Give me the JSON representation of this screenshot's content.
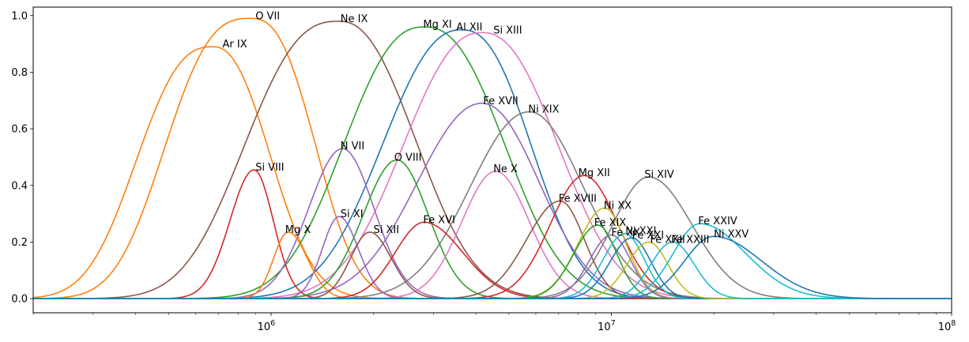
{
  "chart_data": {
    "type": "line",
    "title": "",
    "xlabel": "",
    "ylabel": "",
    "xscale": "log",
    "xlim": [
      200000,
      100000000
    ],
    "ylim": [
      -0.05,
      1.03
    ],
    "grid": false,
    "legend": "none",
    "x_ticks": [
      {
        "value": 1000000,
        "mantissa": "10",
        "exp": "6"
      },
      {
        "value": 10000000,
        "mantissa": "10",
        "exp": "7"
      },
      {
        "value": 100000000,
        "mantissa": "10",
        "exp": "8"
      }
    ],
    "y_ticks": [
      "0.0",
      "0.2",
      "0.4",
      "0.6",
      "0.8",
      "1.0"
    ],
    "y_tick_values": [
      0.0,
      0.2,
      0.4,
      0.6,
      0.8,
      1.0
    ],
    "series": [
      {
        "name": "O VII",
        "color": "#ff7f0e",
        "peak_logT": 5.94,
        "peak": 0.99,
        "w_lo": 0.3,
        "w_hi": 0.232,
        "p_lo": 2.8,
        "p_hi": 2.6,
        "label_x": 900000,
        "label_y": 0.99
      },
      {
        "name": "Ar IX",
        "color": "#ff7f0e",
        "peak_logT": 5.83,
        "peak": 0.89,
        "w_lo": 0.275,
        "w_hi": 0.215,
        "p_lo": 2.6,
        "p_hi": 2.3,
        "label_x": 720000,
        "label_y": 0.89
      },
      {
        "name": "Ne IX",
        "color": "#8c564b",
        "peak_logT": 6.2,
        "peak": 0.98,
        "w_lo": 0.34,
        "w_hi": 0.29,
        "p_lo": 2.6,
        "p_hi": 2.3,
        "label_x": 1600000,
        "label_y": 0.98
      },
      {
        "name": "Mg XI",
        "color": "#2ca02c",
        "peak_logT": 6.45,
        "peak": 0.96,
        "w_lo": 0.3,
        "w_hi": 0.3,
        "p_lo": 2.4,
        "p_hi": 2.4,
        "label_x": 2800000,
        "label_y": 0.96
      },
      {
        "name": "Al XII",
        "color": "#1f77b4",
        "peak_logT": 6.56,
        "peak": 0.95,
        "w_lo": 0.3,
        "w_hi": 0.26,
        "p_lo": 2.3,
        "p_hi": 2.4,
        "label_x": 3500000,
        "label_y": 0.95
      },
      {
        "name": "Si XIII",
        "color": "#e377c2",
        "peak_logT": 6.62,
        "peak": 0.94,
        "w_lo": 0.3,
        "w_hi": 0.29,
        "p_lo": 2.3,
        "p_hi": 2.3,
        "label_x": 4500000,
        "label_y": 0.94
      },
      {
        "name": "Fe XVII",
        "color": "#9467bd",
        "peak_logT": 6.62,
        "peak": 0.69,
        "w_lo": 0.26,
        "w_hi": 0.23,
        "p_lo": 2.1,
        "p_hi": 2.1,
        "label_x": 4200000,
        "label_y": 0.69
      },
      {
        "name": "Ni XIX",
        "color": "#7f7f7f",
        "peak_logT": 6.76,
        "peak": 0.66,
        "w_lo": 0.24,
        "w_hi": 0.22,
        "p_lo": 2.1,
        "p_hi": 2.0,
        "label_x": 5700000,
        "label_y": 0.66
      },
      {
        "name": "Si VIII",
        "color": "#d62728",
        "peak_logT": 5.95,
        "peak": 0.455,
        "w_lo": 0.1,
        "w_hi": 0.08,
        "p_lo": 2.0,
        "p_hi": 2.0,
        "label_x": 900000,
        "label_y": 0.455
      },
      {
        "name": "N VII",
        "color": "#9467bd",
        "peak_logT": 6.21,
        "peak": 0.53,
        "w_lo": 0.14,
        "w_hi": 0.13,
        "p_lo": 2.0,
        "p_hi": 2.0,
        "label_x": 1600000,
        "label_y": 0.53
      },
      {
        "name": "O VIII",
        "color": "#2ca02c",
        "peak_logT": 6.37,
        "peak": 0.49,
        "w_lo": 0.14,
        "w_hi": 0.13,
        "p_lo": 2.0,
        "p_hi": 2.0,
        "label_x": 2300000,
        "label_y": 0.49
      },
      {
        "name": "Ne X",
        "color": "#e377c2",
        "peak_logT": 6.66,
        "peak": 0.45,
        "w_lo": 0.14,
        "w_hi": 0.14,
        "p_lo": 2.0,
        "p_hi": 2.0,
        "label_x": 4500000,
        "label_y": 0.45
      },
      {
        "name": "Mg XII",
        "color": "#d62728",
        "peak_logT": 6.92,
        "peak": 0.435,
        "w_lo": 0.14,
        "w_hi": 0.14,
        "p_lo": 2.0,
        "p_hi": 2.0,
        "label_x": 8000000,
        "label_y": 0.435
      },
      {
        "name": "Si XIV",
        "color": "#7f7f7f",
        "peak_logT": 7.11,
        "peak": 0.43,
        "w_lo": 0.15,
        "w_hi": 0.18,
        "p_lo": 2.0,
        "p_hi": 2.0,
        "label_x": 12500000,
        "label_y": 0.43
      },
      {
        "name": "Si XI",
        "color": "#9467bd",
        "peak_logT": 6.2,
        "peak": 0.29,
        "w_lo": 0.07,
        "w_hi": 0.08,
        "p_lo": 2.0,
        "p_hi": 2.0,
        "label_x": 1600000,
        "label_y": 0.29
      },
      {
        "name": "Mg X",
        "color": "#ff7f0e",
        "peak_logT": 6.05,
        "peak": 0.235,
        "w_lo": 0.06,
        "w_hi": 0.08,
        "p_lo": 2.0,
        "p_hi": 2.0,
        "label_x": 1100000,
        "label_y": 0.235
      },
      {
        "name": "Si XII",
        "color": "#8c564b",
        "peak_logT": 6.29,
        "peak": 0.235,
        "w_lo": 0.08,
        "w_hi": 0.09,
        "p_lo": 2.0,
        "p_hi": 2.0,
        "label_x": 2000000,
        "label_y": 0.235
      },
      {
        "name": "Fe XVI",
        "color": "#d62728",
        "peak_logT": 6.45,
        "peak": 0.27,
        "w_lo": 0.12,
        "w_hi": 0.16,
        "p_lo": 2.0,
        "p_hi": 2.0,
        "label_x": 2800000,
        "label_y": 0.27
      },
      {
        "name": "Fe XVIII",
        "color": "#8c564b",
        "peak_logT": 6.85,
        "peak": 0.345,
        "w_lo": 0.14,
        "w_hi": 0.1,
        "p_lo": 2.0,
        "p_hi": 2.0,
        "label_x": 7000000,
        "label_y": 0.345
      },
      {
        "name": "Ni XX",
        "color": "#bcbd22",
        "peak_logT": 6.98,
        "peak": 0.32,
        "w_lo": 0.11,
        "w_hi": 0.09,
        "p_lo": 2.0,
        "p_hi": 2.0,
        "label_x": 9500000,
        "label_y": 0.32
      },
      {
        "name": "Fe XIX",
        "color": "#2ca02c",
        "peak_logT": 6.96,
        "peak": 0.26,
        "w_lo": 0.1,
        "w_hi": 0.08,
        "p_lo": 2.0,
        "p_hi": 2.0,
        "label_x": 8900000,
        "label_y": 0.26
      },
      {
        "name": "Fe XX",
        "color": "#9467bd",
        "peak_logT": 7.0,
        "peak": 0.225,
        "w_lo": 0.09,
        "w_hi": 0.08,
        "p_lo": 2.0,
        "p_hi": 2.0,
        "label_x": 10000000,
        "label_y": 0.225
      },
      {
        "name": "Ni XXI",
        "color": "#17becf",
        "peak_logT": 7.04,
        "peak": 0.23,
        "w_lo": 0.09,
        "w_hi": 0.08,
        "p_lo": 2.0,
        "p_hi": 2.0,
        "label_x": 11000000,
        "label_y": 0.23
      },
      {
        "name": "Fe XXI",
        "color": "#1f77b4",
        "peak_logT": 7.06,
        "peak": 0.215,
        "w_lo": 0.09,
        "w_hi": 0.08,
        "p_lo": 2.0,
        "p_hi": 2.0,
        "label_x": 11500000,
        "label_y": 0.215
      },
      {
        "name": "Fe XXII",
        "color": "#bcbd22",
        "peak_logT": 7.11,
        "peak": 0.2,
        "w_lo": 0.09,
        "w_hi": 0.08,
        "p_lo": 2.0,
        "p_hi": 2.0,
        "label_x": 13000000,
        "label_y": 0.2
      },
      {
        "name": "Fe XXIII",
        "color": "#17becf",
        "peak_logT": 7.18,
        "peak": 0.2,
        "w_lo": 0.09,
        "w_hi": 0.09,
        "p_lo": 2.0,
        "p_hi": 2.0,
        "label_x": 15000000,
        "label_y": 0.2
      },
      {
        "name": "Fe XXIV",
        "color": "#17becf",
        "peak_logT": 7.26,
        "peak": 0.265,
        "w_lo": 0.11,
        "w_hi": 0.19,
        "p_lo": 2.0,
        "p_hi": 2.0,
        "label_x": 18000000,
        "label_y": 0.265
      },
      {
        "name": "Ni XXV",
        "color": "#1f77b4",
        "peak_logT": 7.3,
        "peak": 0.22,
        "w_lo": 0.12,
        "w_hi": 0.2,
        "p_lo": 2.0,
        "p_hi": 2.0,
        "label_x": 20000000,
        "label_y": 0.22
      }
    ]
  }
}
